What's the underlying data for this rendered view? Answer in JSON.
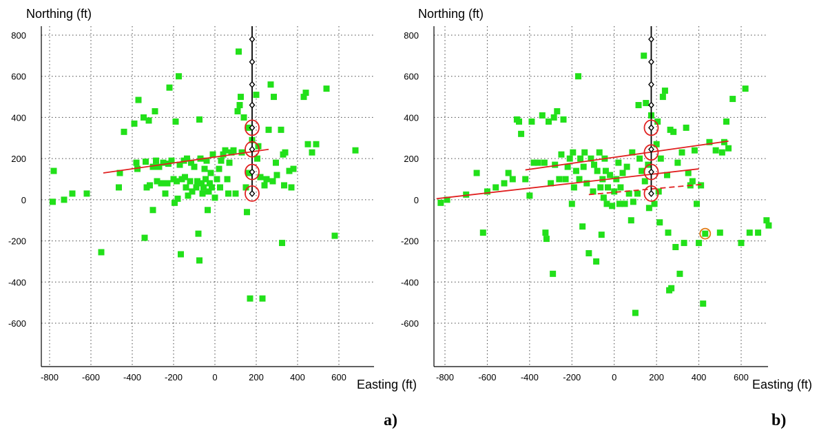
{
  "chart_data": [
    {
      "type": "scatter",
      "panel_label": "a)",
      "ylabel": "Northing (ft)",
      "xlabel": "Easting (ft)",
      "x_ticks": [
        -800,
        -600,
        -400,
        -200,
        0,
        200,
        400,
        600
      ],
      "y_ticks": [
        800,
        600,
        400,
        200,
        0,
        -200,
        -400,
        -600
      ],
      "xlim": [
        -840,
        720
      ],
      "ylim": [
        -800,
        850
      ],
      "grid": true,
      "colors": {
        "points": "#22e01a",
        "fit_line": "#e02020",
        "well": "#000000",
        "circle": "#e02020"
      },
      "points": [
        [
          -780,
          140
        ],
        [
          -785,
          -10
        ],
        [
          -730,
          0
        ],
        [
          -690,
          30
        ],
        [
          -620,
          30
        ],
        [
          -550,
          -255
        ],
        [
          -460,
          130
        ],
        [
          -465,
          60
        ],
        [
          -440,
          330
        ],
        [
          -390,
          370
        ],
        [
          -380,
          180
        ],
        [
          -375,
          150
        ],
        [
          -370,
          485
        ],
        [
          -345,
          400
        ],
        [
          -340,
          -185
        ],
        [
          -335,
          185
        ],
        [
          -330,
          60
        ],
        [
          -320,
          385
        ],
        [
          -315,
          70
        ],
        [
          -300,
          160
        ],
        [
          -300,
          -50
        ],
        [
          -290,
          430
        ],
        [
          -285,
          190
        ],
        [
          -280,
          90
        ],
        [
          -270,
          160
        ],
        [
          -260,
          80
        ],
        [
          -250,
          180
        ],
        [
          -240,
          30
        ],
        [
          -230,
          80
        ],
        [
          -225,
          175
        ],
        [
          -220,
          545
        ],
        [
          -210,
          190
        ],
        [
          -200,
          100
        ],
        [
          -195,
          -15
        ],
        [
          -190,
          380
        ],
        [
          -185,
          90
        ],
        [
          -180,
          5
        ],
        [
          -175,
          600
        ],
        [
          -170,
          170
        ],
        [
          -165,
          -265
        ],
        [
          -160,
          100
        ],
        [
          -150,
          190
        ],
        [
          -145,
          110
        ],
        [
          -140,
          60
        ],
        [
          -135,
          200
        ],
        [
          -130,
          20
        ],
        [
          -120,
          90
        ],
        [
          -115,
          180
        ],
        [
          -110,
          40
        ],
        [
          -100,
          160
        ],
        [
          -90,
          60
        ],
        [
          -85,
          90
        ],
        [
          -80,
          -165
        ],
        [
          -75,
          -295
        ],
        [
          -75,
          390
        ],
        [
          -70,
          200
        ],
        [
          -65,
          80
        ],
        [
          -60,
          30
        ],
        [
          -55,
          60
        ],
        [
          -50,
          150
        ],
        [
          -45,
          100
        ],
        [
          -40,
          190
        ],
        [
          -35,
          -50
        ],
        [
          -30,
          40
        ],
        [
          -25,
          80
        ],
        [
          -20,
          130
        ],
        [
          -15,
          60
        ],
        [
          -10,
          220
        ],
        [
          0,
          10
        ],
        [
          10,
          100
        ],
        [
          20,
          150
        ],
        [
          25,
          60
        ],
        [
          30,
          190
        ],
        [
          40,
          220
        ],
        [
          50,
          240
        ],
        [
          60,
          100
        ],
        [
          65,
          30
        ],
        [
          70,
          180
        ],
        [
          80,
          230
        ],
        [
          90,
          240
        ],
        [
          100,
          30
        ],
        [
          110,
          430
        ],
        [
          115,
          720
        ],
        [
          120,
          460
        ],
        [
          125,
          500
        ],
        [
          130,
          230
        ],
        [
          140,
          400
        ],
        [
          150,
          60
        ],
        [
          155,
          -60
        ],
        [
          160,
          350
        ],
        [
          165,
          130
        ],
        [
          170,
          -480
        ],
        [
          180,
          290
        ],
        [
          200,
          510
        ],
        [
          205,
          200
        ],
        [
          210,
          260
        ],
        [
          220,
          110
        ],
        [
          230,
          -480
        ],
        [
          240,
          70
        ],
        [
          250,
          100
        ],
        [
          260,
          340
        ],
        [
          270,
          560
        ],
        [
          280,
          90
        ],
        [
          285,
          500
        ],
        [
          295,
          180
        ],
        [
          300,
          120
        ],
        [
          320,
          340
        ],
        [
          325,
          -210
        ],
        [
          330,
          220
        ],
        [
          335,
          70
        ],
        [
          340,
          230
        ],
        [
          360,
          140
        ],
        [
          370,
          60
        ],
        [
          380,
          150
        ],
        [
          430,
          500
        ],
        [
          440,
          520
        ],
        [
          450,
          270
        ],
        [
          470,
          230
        ],
        [
          490,
          270
        ],
        [
          540,
          540
        ],
        [
          580,
          -175
        ],
        [
          680,
          240
        ]
      ],
      "fit_lines": [
        {
          "style": "solid",
          "points": [
            [
              -540,
              130
            ],
            [
              260,
              245
            ]
          ]
        }
      ],
      "well_x": 180,
      "well_nodes": [
        780,
        670,
        560,
        460,
        350,
        245,
        135,
        30
      ],
      "circled_y": [
        350,
        245,
        135,
        30
      ]
    },
    {
      "type": "scatter",
      "panel_label": "b)",
      "ylabel": "Northing (ft)",
      "xlabel": "Easting (ft)",
      "x_ticks": [
        -800,
        -600,
        -400,
        -200,
        0,
        200,
        400,
        600
      ],
      "y_ticks": [
        800,
        600,
        400,
        200,
        0,
        -200,
        -400,
        -600
      ],
      "xlim": [
        -840,
        740
      ],
      "ylim": [
        -800,
        850
      ],
      "grid": true,
      "colors": {
        "points": "#22e01a",
        "fit_line": "#e02020",
        "well": "#000000",
        "circle": "#e02020",
        "highlight_ring": "#e07a10"
      },
      "points": [
        [
          -820,
          -15
        ],
        [
          -790,
          0
        ],
        [
          -700,
          25
        ],
        [
          -650,
          130
        ],
        [
          -620,
          -160
        ],
        [
          -600,
          40
        ],
        [
          -560,
          60
        ],
        [
          -520,
          80
        ],
        [
          -500,
          130
        ],
        [
          -480,
          100
        ],
        [
          -460,
          390
        ],
        [
          -450,
          380
        ],
        [
          -440,
          320
        ],
        [
          -420,
          100
        ],
        [
          -400,
          20
        ],
        [
          -390,
          380
        ],
        [
          -380,
          180
        ],
        [
          -360,
          180
        ],
        [
          -340,
          410
        ],
        [
          -330,
          180
        ],
        [
          -325,
          -160
        ],
        [
          -320,
          -190
        ],
        [
          -310,
          380
        ],
        [
          -300,
          80
        ],
        [
          -290,
          -360
        ],
        [
          -285,
          400
        ],
        [
          -280,
          170
        ],
        [
          -270,
          430
        ],
        [
          -260,
          100
        ],
        [
          -250,
          220
        ],
        [
          -240,
          390
        ],
        [
          -230,
          100
        ],
        [
          -220,
          160
        ],
        [
          -210,
          200
        ],
        [
          -200,
          -20
        ],
        [
          -195,
          230
        ],
        [
          -190,
          60
        ],
        [
          -180,
          140
        ],
        [
          -170,
          600
        ],
        [
          -165,
          100
        ],
        [
          -160,
          200
        ],
        [
          -150,
          -130
        ],
        [
          -145,
          160
        ],
        [
          -140,
          230
        ],
        [
          -130,
          80
        ],
        [
          -120,
          -260
        ],
        [
          -110,
          200
        ],
        [
          -100,
          40
        ],
        [
          -95,
          170
        ],
        [
          -85,
          -300
        ],
        [
          -80,
          140
        ],
        [
          -70,
          230
        ],
        [
          -65,
          60
        ],
        [
          -60,
          -170
        ],
        [
          -55,
          100
        ],
        [
          -50,
          10
        ],
        [
          -45,
          200
        ],
        [
          -40,
          140
        ],
        [
          -35,
          -20
        ],
        [
          -30,
          60
        ],
        [
          -20,
          120
        ],
        [
          -10,
          -30
        ],
        [
          0,
          40
        ],
        [
          10,
          100
        ],
        [
          20,
          180
        ],
        [
          25,
          -20
        ],
        [
          30,
          60
        ],
        [
          40,
          130
        ],
        [
          50,
          -20
        ],
        [
          60,
          160
        ],
        [
          70,
          30
        ],
        [
          80,
          -100
        ],
        [
          85,
          230
        ],
        [
          90,
          -10
        ],
        [
          100,
          -550
        ],
        [
          110,
          30
        ],
        [
          115,
          460
        ],
        [
          120,
          200
        ],
        [
          130,
          140
        ],
        [
          140,
          700
        ],
        [
          145,
          90
        ],
        [
          150,
          470
        ],
        [
          160,
          170
        ],
        [
          165,
          -40
        ],
        [
          175,
          410
        ],
        [
          190,
          -20
        ],
        [
          200,
          270
        ],
        [
          205,
          380
        ],
        [
          210,
          40
        ],
        [
          215,
          -110
        ],
        [
          220,
          200
        ],
        [
          230,
          500
        ],
        [
          240,
          530
        ],
        [
          250,
          120
        ],
        [
          255,
          -160
        ],
        [
          260,
          -440
        ],
        [
          265,
          340
        ],
        [
          270,
          -430
        ],
        [
          280,
          330
        ],
        [
          290,
          -230
        ],
        [
          300,
          180
        ],
        [
          310,
          -360
        ],
        [
          320,
          230
        ],
        [
          330,
          -210
        ],
        [
          340,
          350
        ],
        [
          350,
          130
        ],
        [
          360,
          70
        ],
        [
          370,
          90
        ],
        [
          380,
          240
        ],
        [
          390,
          -20
        ],
        [
          400,
          -210
        ],
        [
          410,
          70
        ],
        [
          420,
          -505
        ],
        [
          430,
          -165
        ],
        [
          450,
          280
        ],
        [
          480,
          240
        ],
        [
          500,
          -160
        ],
        [
          510,
          230
        ],
        [
          520,
          280
        ],
        [
          530,
          380
        ],
        [
          540,
          250
        ],
        [
          560,
          490
        ],
        [
          600,
          -210
        ],
        [
          620,
          540
        ],
        [
          640,
          -160
        ],
        [
          680,
          -160
        ],
        [
          720,
          -100
        ],
        [
          730,
          -125
        ]
      ],
      "highlight_point": [
        430,
        -165
      ],
      "fit_lines": [
        {
          "style": "solid",
          "points": [
            [
              -840,
              5
            ],
            [
              400,
              150
            ]
          ]
        },
        {
          "style": "solid",
          "points": [
            [
              -420,
              145
            ],
            [
              540,
              285
            ]
          ]
        },
        {
          "style": "dashed",
          "points": [
            [
              -120,
              25
            ],
            [
              420,
              75
            ]
          ]
        }
      ],
      "well_x": 175,
      "well_nodes": [
        780,
        670,
        560,
        460,
        350,
        245,
        135,
        30
      ],
      "circled_y": [
        350,
        230,
        135,
        30
      ]
    }
  ]
}
